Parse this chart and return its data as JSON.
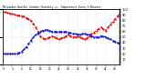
{
  "title": "Milwaukee Weather Outdoor Humidity vs. Temperature Every 5 Minutes",
  "red_y": [
    95,
    95,
    94,
    93,
    92,
    91,
    90,
    89,
    88,
    87,
    85,
    83,
    80,
    75,
    68,
    60,
    52,
    48,
    46,
    48,
    50,
    52,
    50,
    48,
    46,
    48,
    50,
    52,
    54,
    52,
    50,
    50,
    52,
    50,
    48,
    46,
    48,
    52,
    56,
    58,
    62,
    65,
    68,
    65,
    62,
    68,
    72,
    78,
    83,
    88,
    92
  ],
  "blue_y": [
    20,
    20,
    20,
    20,
    20,
    20,
    21,
    22,
    24,
    28,
    32,
    38,
    44,
    50,
    54,
    57,
    60,
    62,
    63,
    63,
    62,
    60,
    60,
    60,
    60,
    60,
    60,
    60,
    58,
    58,
    56,
    56,
    55,
    55,
    56,
    56,
    55,
    54,
    52,
    50,
    50,
    50,
    52,
    52,
    50,
    48,
    46,
    44,
    42,
    40,
    38
  ],
  "n_points": 51,
  "red_color": "#dd0000",
  "blue_color": "#0000cc",
  "background_color": "#ffffff",
  "grid_color": "#c0c0c0",
  "ylim": [
    0,
    100
  ],
  "right_yticks": [
    10,
    20,
    30,
    40,
    50,
    60,
    70,
    80,
    90,
    100
  ],
  "right_yticklabels": [
    "10",
    "20",
    "30",
    "40",
    "50",
    "60",
    "70",
    "80",
    "90",
    "100"
  ]
}
